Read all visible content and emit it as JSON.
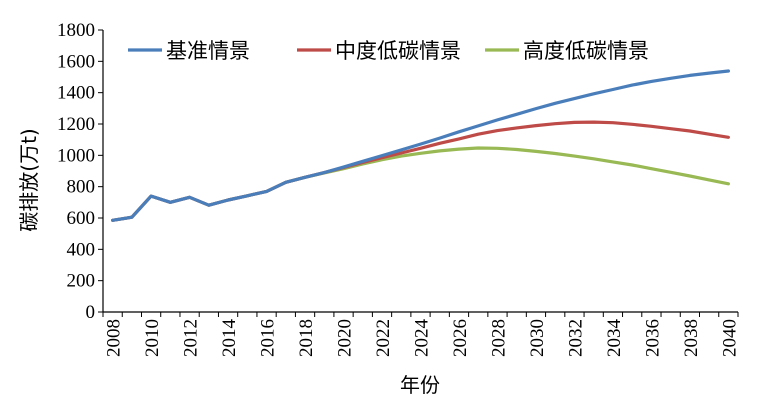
{
  "chart_data": {
    "type": "line",
    "xlabel": "年份",
    "ylabel": "碳排放(万t)",
    "xlim": [
      2007,
      2040
    ],
    "ylim": [
      0,
      1800
    ],
    "y_ticks": [
      0,
      200,
      400,
      600,
      800,
      1000,
      1200,
      1400,
      1600,
      1800
    ],
    "x_ticks": [
      "2008",
      "2010",
      "2012",
      "2014",
      "2016",
      "2018",
      "2020",
      "2022",
      "2024",
      "2026",
      "2028",
      "2030",
      "2032",
      "2034",
      "2036",
      "2038",
      "2040"
    ],
    "grid": false,
    "legend_position": "top",
    "x": [
      2007.5,
      2008.5,
      2009.5,
      2010.5,
      2011.5,
      2012.5,
      2013.5,
      2014.5,
      2015.5,
      2016.5,
      2017.5,
      2018.5,
      2019.5,
      2020.5,
      2021.5,
      2022.5,
      2023.5,
      2024.5,
      2025.5,
      2026.5,
      2027.5,
      2028.5,
      2029.5,
      2030.5,
      2031.5,
      2032.5,
      2033.5,
      2034.5,
      2035.5,
      2036.5,
      2037.5,
      2038.5,
      2039.5
    ],
    "series": [
      {
        "name": "基准情景",
        "color": "#4a7ebb",
        "values": [
          585,
          605,
          740,
          700,
          732,
          682,
          715,
          742,
          770,
          828,
          860,
          890,
          925,
          962,
          998,
          1035,
          1072,
          1110,
          1150,
          1188,
          1226,
          1262,
          1298,
          1332,
          1362,
          1393,
          1420,
          1448,
          1472,
          1492,
          1510,
          1525,
          1538
        ]
      },
      {
        "name": "中度低碳情景",
        "color": "#be4b48",
        "values": [
          585,
          605,
          740,
          700,
          732,
          682,
          715,
          742,
          770,
          828,
          860,
          890,
          922,
          955,
          985,
          1015,
          1045,
          1077,
          1105,
          1135,
          1158,
          1175,
          1190,
          1202,
          1210,
          1212,
          1208,
          1198,
          1185,
          1170,
          1155,
          1135,
          1115
        ]
      },
      {
        "name": "高度低碳情景",
        "color": "#98b954",
        "values": [
          585,
          605,
          740,
          700,
          732,
          682,
          715,
          742,
          770,
          828,
          860,
          887,
          915,
          945,
          972,
          995,
          1013,
          1028,
          1040,
          1047,
          1045,
          1037,
          1025,
          1012,
          995,
          978,
          958,
          938,
          915,
          892,
          868,
          843,
          818
        ]
      }
    ]
  }
}
